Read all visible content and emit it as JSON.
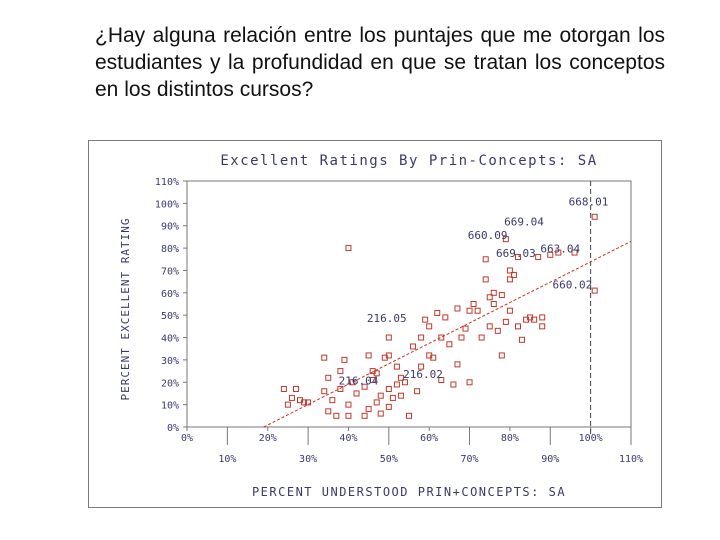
{
  "slide": {
    "question": "¿Hay alguna relación entre los puntajes que me otorgan los estudiantes y la profundidad en que se tratan los conceptos en los distintos cursos?"
  },
  "colors": {
    "points": "#c0392b",
    "trend": "#d03020",
    "text": "#3a3a6a",
    "reference": "#444444"
  },
  "chart_data": {
    "type": "scatter",
    "title": "Excellent Ratings By Prin-Concepts: SA",
    "xlabel": "PERCENT UNDERSTOOD PRIN+CONCEPTS: SA",
    "ylabel": "PERCENT EXCELLENT RATING",
    "xlim": [
      0,
      110
    ],
    "ylim": [
      0,
      110
    ],
    "x_ticks": [
      "0%",
      "10%",
      "20%",
      "30%",
      "40%",
      "50%",
      "60%",
      "70%",
      "80%",
      "90%",
      "100%",
      "110%"
    ],
    "y_ticks": [
      "0%",
      "10%",
      "20%",
      "30%",
      "40%",
      "50%",
      "60%",
      "70%",
      "80%",
      "90%",
      "100%",
      "110%"
    ],
    "grid": false,
    "reference_line_x": 100,
    "trend_line": [
      [
        19,
        0
      ],
      [
        110,
        83
      ]
    ],
    "points": [
      [
        24,
        17
      ],
      [
        25,
        10
      ],
      [
        26,
        13
      ],
      [
        27,
        17
      ],
      [
        28,
        12
      ],
      [
        29,
        11
      ],
      [
        30,
        11
      ],
      [
        34,
        16
      ],
      [
        34,
        31
      ],
      [
        35,
        22
      ],
      [
        35,
        7
      ],
      [
        36,
        12
      ],
      [
        37,
        5
      ],
      [
        38,
        17
      ],
      [
        38,
        25
      ],
      [
        39,
        30
      ],
      [
        40,
        10
      ],
      [
        40,
        5
      ],
      [
        40,
        80
      ],
      [
        41,
        20
      ],
      [
        42,
        15
      ],
      [
        44,
        5
      ],
      [
        44,
        18
      ],
      [
        45,
        8
      ],
      [
        45,
        32
      ],
      [
        46,
        25
      ],
      [
        46,
        21
      ],
      [
        47,
        11
      ],
      [
        47,
        24
      ],
      [
        48,
        6
      ],
      [
        48,
        14
      ],
      [
        49,
        31
      ],
      [
        50,
        9
      ],
      [
        50,
        17
      ],
      [
        50,
        32
      ],
      [
        50,
        40
      ],
      [
        51,
        13
      ],
      [
        52,
        27
      ],
      [
        52,
        19
      ],
      [
        53,
        14
      ],
      [
        53,
        22
      ],
      [
        54,
        20
      ],
      [
        55,
        5
      ],
      [
        56,
        36
      ],
      [
        57,
        16
      ],
      [
        58,
        27
      ],
      [
        58,
        40
      ],
      [
        59,
        48
      ],
      [
        60,
        32
      ],
      [
        60,
        45
      ],
      [
        61,
        31
      ],
      [
        62,
        51
      ],
      [
        63,
        21
      ],
      [
        63,
        40
      ],
      [
        64,
        49
      ],
      [
        65,
        37
      ],
      [
        66,
        19
      ],
      [
        67,
        53
      ],
      [
        67,
        28
      ],
      [
        68,
        40
      ],
      [
        69,
        44
      ],
      [
        70,
        20
      ],
      [
        70,
        52
      ],
      [
        71,
        55
      ],
      [
        72,
        52
      ],
      [
        73,
        40
      ],
      [
        74,
        75
      ],
      [
        74,
        66
      ],
      [
        75,
        45
      ],
      [
        75,
        58
      ],
      [
        76,
        55
      ],
      [
        76,
        60
      ],
      [
        77,
        43
      ],
      [
        78,
        32
      ],
      [
        78,
        59
      ],
      [
        79,
        84
      ],
      [
        79,
        47
      ],
      [
        80,
        66
      ],
      [
        80,
        52
      ],
      [
        80,
        70
      ],
      [
        81,
        68
      ],
      [
        82,
        45
      ],
      [
        82,
        76
      ],
      [
        83,
        39
      ],
      [
        84,
        48
      ],
      [
        85,
        49
      ],
      [
        86,
        48
      ],
      [
        87,
        76
      ],
      [
        88,
        49
      ],
      [
        88,
        45
      ],
      [
        90,
        77
      ],
      [
        92,
        78
      ],
      [
        96,
        78
      ],
      [
        101,
        61
      ],
      [
        101,
        94
      ]
    ],
    "annotations": [
      {
        "label": "668.01",
        "x": 101,
        "y": 99
      },
      {
        "label": "669.04",
        "x": 85,
        "y": 90
      },
      {
        "label": "660.09",
        "x": 76,
        "y": 84
      },
      {
        "label": "663.04",
        "x": 94,
        "y": 78
      },
      {
        "label": "669.03",
        "x": 83,
        "y": 76
      },
      {
        "label": "660.02",
        "x": 97,
        "y": 62
      },
      {
        "label": "216.05",
        "x": 51,
        "y": 47
      },
      {
        "label": "216.02",
        "x": 60,
        "y": 22
      },
      {
        "label": "216.04",
        "x": 44,
        "y": 19
      }
    ]
  }
}
